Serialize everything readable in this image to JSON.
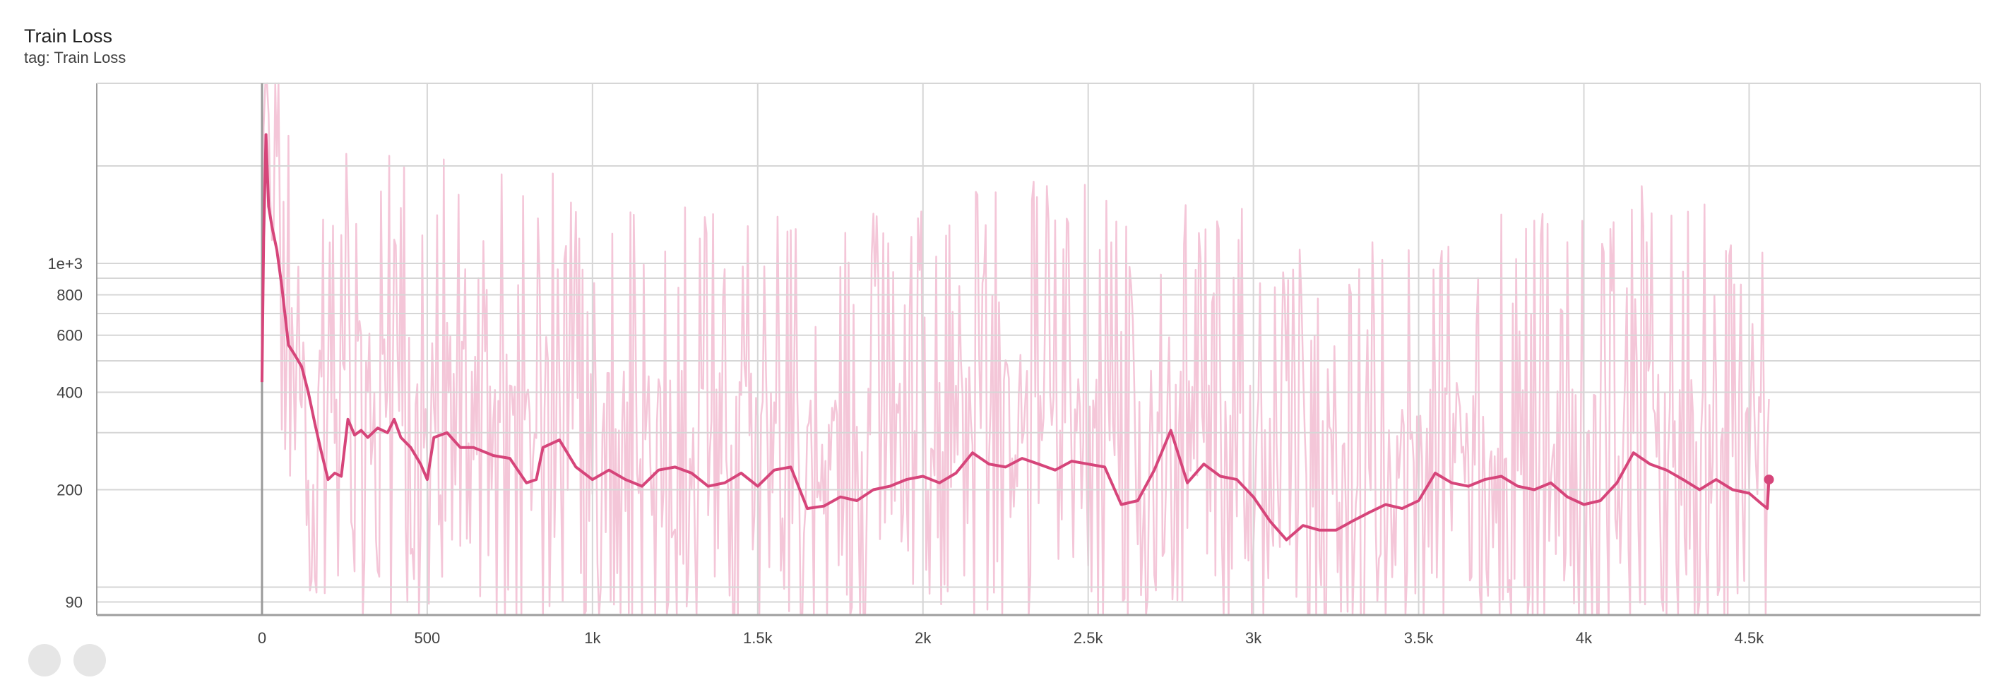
{
  "card": {
    "title": "Train Loss",
    "tag": "tag: Train Loss"
  },
  "chart_data": {
    "type": "line",
    "title": "Train Loss",
    "subtitle": "tag: Train Loss",
    "xlabel": "",
    "ylabel": "",
    "y_scale": "log",
    "xlim": [
      -500,
      5200
    ],
    "ylim": [
      82,
      3600
    ],
    "grid": true,
    "x_ticks": [
      {
        "value": 0,
        "label": "0"
      },
      {
        "value": 500,
        "label": "500"
      },
      {
        "value": 1000,
        "label": "1k"
      },
      {
        "value": 1500,
        "label": "1.5k"
      },
      {
        "value": 2000,
        "label": "2k"
      },
      {
        "value": 2500,
        "label": "2.5k"
      },
      {
        "value": 3000,
        "label": "3k"
      },
      {
        "value": 3500,
        "label": "3.5k"
      },
      {
        "value": 4000,
        "label": "4k"
      },
      {
        "value": 4500,
        "label": "4.5k"
      }
    ],
    "y_ticks": [
      {
        "value": 1000,
        "label": "1e+3"
      },
      {
        "value": 800,
        "label": "800"
      },
      {
        "value": 600,
        "label": "600"
      },
      {
        "value": 400,
        "label": "400"
      },
      {
        "value": 200,
        "label": "200"
      },
      {
        "value": 90,
        "label": "90"
      }
    ],
    "y_minor_grid": [
      100,
      300,
      500,
      700,
      900,
      2000
    ],
    "colors": {
      "smoothed": "#d6457a",
      "raw": "#f4c6d8",
      "grid": "#d6d6d6",
      "axis": "#9e9e9e"
    },
    "series": [
      {
        "kind": "smoothed",
        "x": [
          0,
          5,
          12,
          20,
          30,
          45,
          60,
          80,
          100,
          120,
          140,
          160,
          180,
          200,
          220,
          240,
          260,
          280,
          300,
          320,
          350,
          380,
          400,
          420,
          450,
          480,
          500,
          520,
          560,
          600,
          640,
          700,
          750,
          800,
          830,
          850,
          900,
          950,
          1000,
          1050,
          1100,
          1150,
          1200,
          1250,
          1300,
          1350,
          1400,
          1450,
          1500,
          1550,
          1600,
          1650,
          1700,
          1750,
          1800,
          1850,
          1900,
          1950,
          2000,
          2050,
          2100,
          2150,
          2200,
          2250,
          2300,
          2350,
          2400,
          2450,
          2500,
          2550,
          2600,
          2650,
          2700,
          2750,
          2800,
          2850,
          2900,
          2950,
          3000,
          3050,
          3100,
          3150,
          3200,
          3250,
          3300,
          3350,
          3400,
          3450,
          3500,
          3550,
          3600,
          3650,
          3700,
          3750,
          3800,
          3850,
          3900,
          3950,
          4000,
          4050,
          4100,
          4150,
          4200,
          4250,
          4300,
          4350,
          4400,
          4450,
          4500,
          4540,
          4555,
          4560
        ],
        "y": [
          430,
          1200,
          2500,
          1500,
          1300,
          1100,
          850,
          560,
          520,
          480,
          400,
          320,
          260,
          215,
          225,
          220,
          330,
          295,
          305,
          290,
          310,
          300,
          330,
          290,
          270,
          240,
          215,
          290,
          300,
          270,
          270,
          255,
          250,
          210,
          215,
          270,
          285,
          235,
          215,
          230,
          215,
          205,
          230,
          235,
          225,
          205,
          210,
          225,
          205,
          230,
          235,
          175,
          178,
          190,
          185,
          200,
          205,
          215,
          220,
          210,
          225,
          260,
          240,
          235,
          250,
          240,
          230,
          245,
          240,
          235,
          180,
          185,
          230,
          305,
          210,
          240,
          220,
          215,
          190,
          160,
          140,
          155,
          150,
          150,
          160,
          170,
          180,
          175,
          185,
          225,
          210,
          205,
          215,
          220,
          205,
          200,
          210,
          190,
          180,
          185,
          210,
          260,
          240,
          230,
          215,
          200,
          215,
          200,
          195,
          180,
          175,
          215
        ]
      }
    ]
  }
}
